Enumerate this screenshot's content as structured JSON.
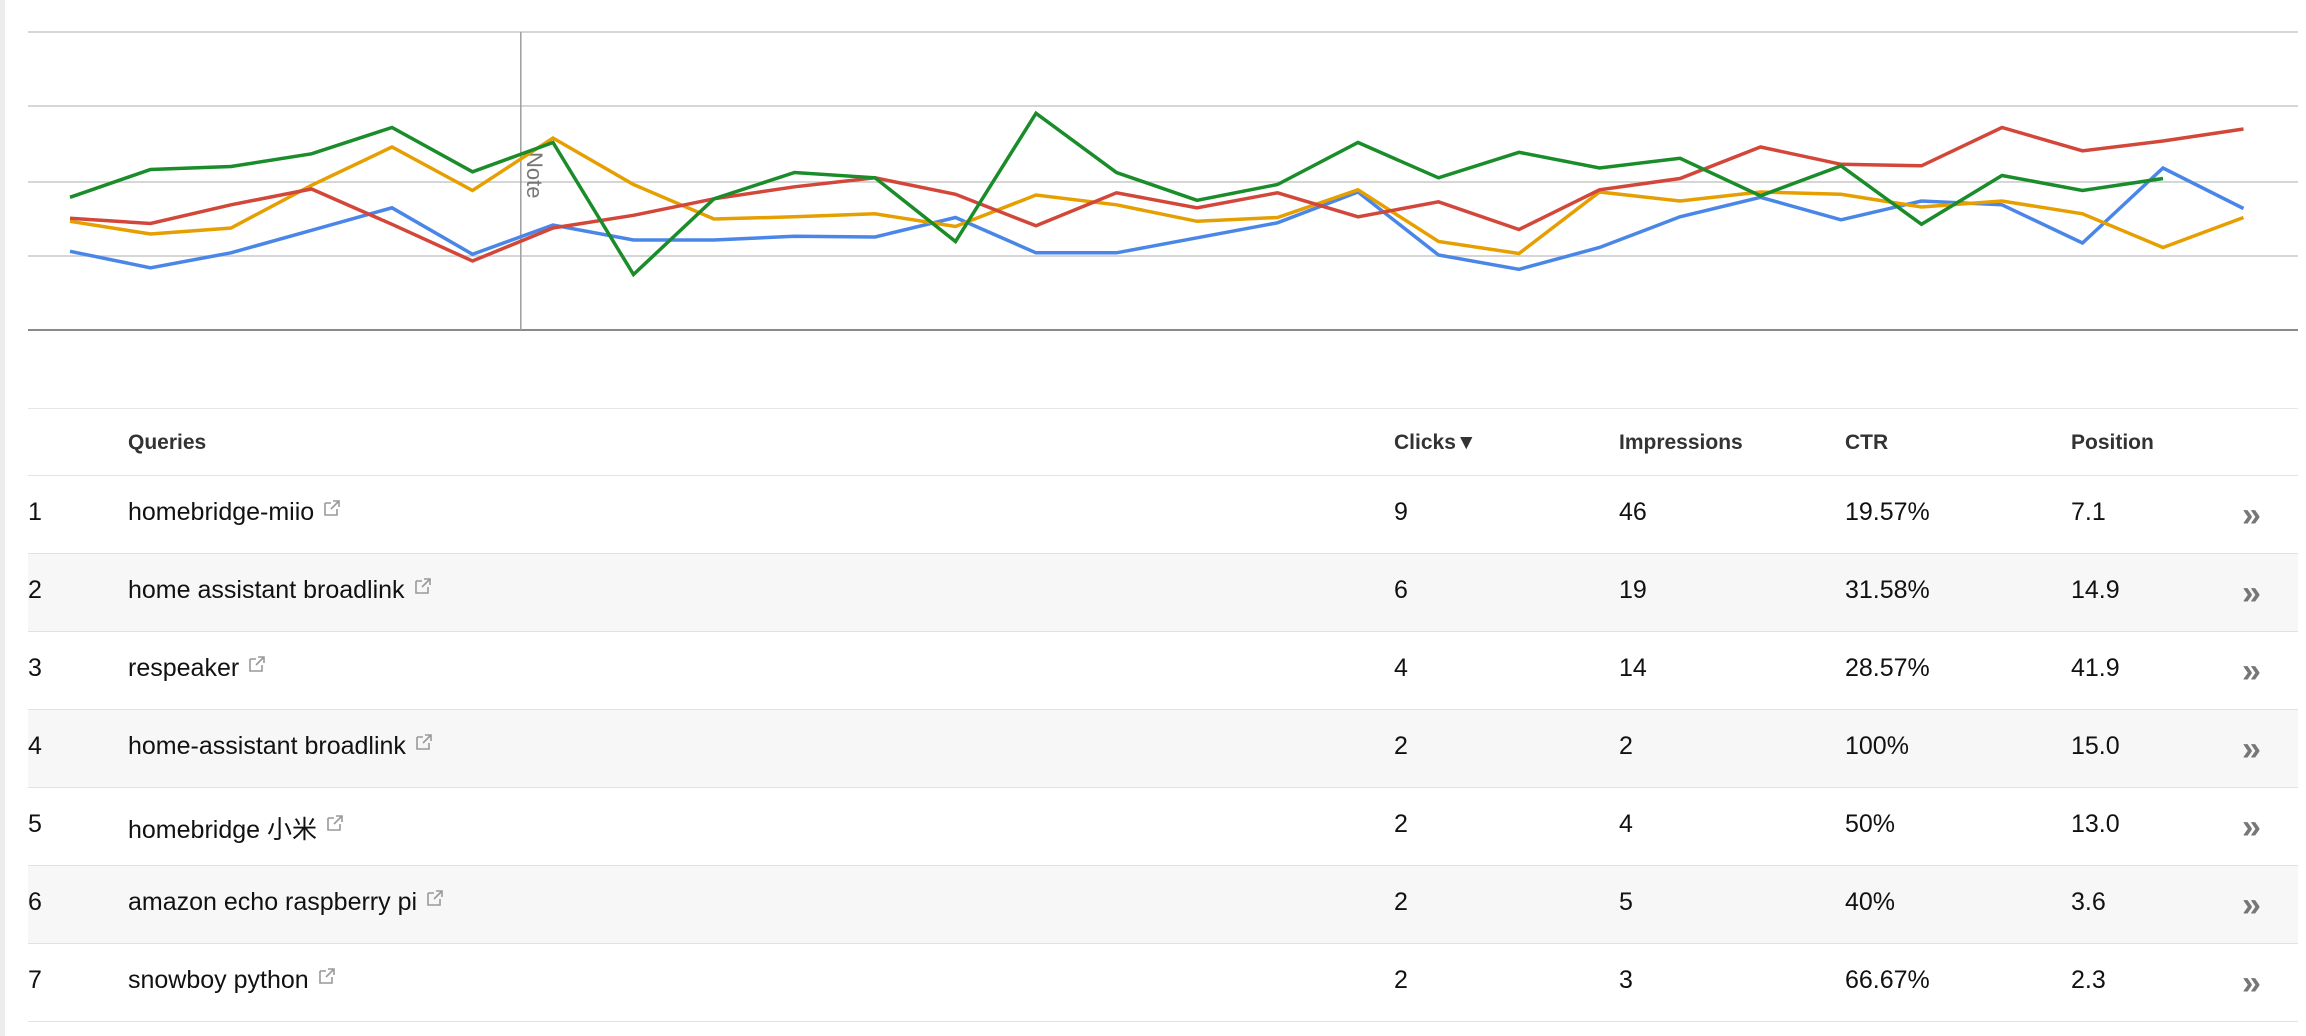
{
  "chart_data": {
    "type": "line",
    "annotation": "Note",
    "series": [
      {
        "color": "#4a86e8",
        "values": [
          52.5,
          41.5,
          51.5,
          66.5,
          81.5,
          50.5,
          70,
          60,
          60,
          62.5,
          62,
          75,
          51.5,
          51.5,
          61.5,
          71.5,
          92,
          50,
          40.5,
          55,
          75.5,
          88.5,
          73.5,
          86,
          83.5,
          58,
          108,
          81
        ]
      },
      {
        "color": "#e69f00",
        "values": [
          72.5,
          64,
          68,
          96.5,
          122,
          93,
          128,
          97,
          74,
          75.5,
          77.5,
          69,
          90,
          83.5,
          72.5,
          75,
          93.5,
          59,
          51,
          92,
          86,
          92,
          90.5,
          82,
          86,
          77.5,
          55,
          75
        ]
      },
      {
        "color": "#d2473a",
        "values": [
          74.5,
          71,
          83.5,
          94,
          70.5,
          46,
          68,
          76.5,
          87.5,
          95.5,
          101.5,
          90.5,
          69.5,
          91.5,
          81.5,
          91.5,
          75.5,
          85.5,
          67,
          93.5,
          101,
          122,
          110.5,
          109.5,
          135,
          119.5,
          126,
          134
        ]
      },
      {
        "color": "#1a8c2a",
        "values": [
          88.5,
          107,
          109,
          117.5,
          135,
          105.5,
          125,
          37,
          87.5,
          105,
          101.5,
          59,
          144.5,
          105,
          86.5,
          97,
          125,
          101.5,
          118.5,
          108,
          114.5,
          89.5,
          109.5,
          70.5,
          103,
          93,
          101
        ]
      }
    ]
  },
  "table": {
    "headers": {
      "queries": "Queries",
      "clicks": "Clicks▼",
      "impressions": "Impressions",
      "ctr": "CTR",
      "position": "Position"
    },
    "more_icon": "double-chevron-right-icon",
    "external_icon": "external-link-icon",
    "rows": [
      {
        "index": "1",
        "query": "homebridge-miio",
        "clicks": "9",
        "impressions": "46",
        "ctr": "19.57%",
        "position": "7.1"
      },
      {
        "index": "2",
        "query": "home assistant broadlink",
        "clicks": "6",
        "impressions": "19",
        "ctr": "31.58%",
        "position": "14.9"
      },
      {
        "index": "3",
        "query": "respeaker",
        "clicks": "4",
        "impressions": "14",
        "ctr": "28.57%",
        "position": "41.9"
      },
      {
        "index": "4",
        "query": "home-assistant broadlink",
        "clicks": "2",
        "impressions": "2",
        "ctr": "100%",
        "position": "15.0"
      },
      {
        "index": "5",
        "query": "homebridge 小米",
        "clicks": "2",
        "impressions": "4",
        "ctr": "50%",
        "position": "13.0"
      },
      {
        "index": "6",
        "query": "amazon echo raspberry pi",
        "clicks": "2",
        "impressions": "5",
        "ctr": "40%",
        "position": "3.6"
      },
      {
        "index": "7",
        "query": "snowboy python",
        "clicks": "2",
        "impressions": "3",
        "ctr": "66.67%",
        "position": "2.3"
      }
    ]
  }
}
